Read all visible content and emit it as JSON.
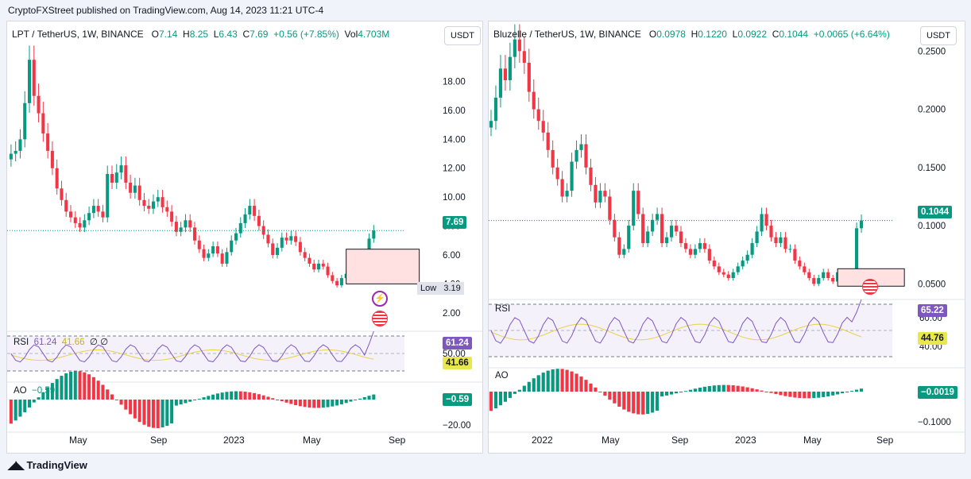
{
  "header": {
    "published_text": "CryptoFXStreet published on TradingView.com, Aug 14, 2023 11:21 UTC-4"
  },
  "footer": {
    "brand": "TradingView",
    "logo_icon": "tradingview-logo-icon"
  },
  "colors": {
    "up": "#089981",
    "down": "#f23645",
    "rsi": "#7e57c2",
    "rsi_ma": "#e8d24a",
    "box_fill": "#ffe1e1"
  },
  "left": {
    "currency_button": "USDT",
    "legend": {
      "symbol": "LPT / TetherUS, 1W, BINANCE",
      "o_label": "O",
      "o": "7.14",
      "h_label": "H",
      "h": "8.25",
      "l_label": "L",
      "l": "6.43",
      "c_label": "C",
      "c": "7.69",
      "change": "+0.56 (+7.85%)",
      "vol_label": "Vol",
      "vol": "4.703M"
    },
    "price_tag": "7.69",
    "low_label": "Low",
    "low_value": "3.19",
    "rsi_legend": {
      "name": "RSI",
      "rsi": "61.24",
      "ma": "41.66",
      "p1": "∅",
      "p2": "∅"
    },
    "rsi_tag": "61.24",
    "rsi_ma_tag": "41.66",
    "rsi_mid": "50.00",
    "ao_legend": {
      "name": "AO",
      "value": "−0.59"
    },
    "ao_tag": "−0.59",
    "ao_axis": "−20.00",
    "price_axis": [
      "18.00",
      "16.00",
      "14.00",
      "12.00",
      "10.00",
      "8.00",
      "6.00",
      "4.00",
      "2.00"
    ],
    "time_axis": [
      "May",
      "Sep",
      "2023",
      "May",
      "Sep"
    ],
    "icons": [
      "lightning-icon",
      "us-flag-icon"
    ]
  },
  "right": {
    "currency_button": "USDT",
    "legend": {
      "symbol": "Bluzelle / TetherUS, 1W, BINANCE",
      "o_label": "O",
      "o": "0.0978",
      "h_label": "H",
      "h": "0.1220",
      "l_label": "L",
      "l": "0.0922",
      "c_label": "C",
      "c": "0.1044",
      "change": "+0.0065 (+6.64%)"
    },
    "price_tag": "0.1044",
    "rsi_legend": {
      "name": "RSI"
    },
    "rsi_tag": "65.22",
    "rsi_ma_tag": "44.76",
    "rsi_top": "60.00",
    "rsi_bottom": "40.00",
    "ao_legend": {
      "name": "AO"
    },
    "ao_tag": "−0.0019",
    "ao_axis": "−0.1000",
    "price_axis": [
      "0.2500",
      "0.2000",
      "0.1500",
      "0.1000",
      "0.0500"
    ],
    "time_axis": [
      "2022",
      "May",
      "Sep",
      "2023",
      "May",
      "Sep"
    ],
    "icons": [
      "us-flag-icon"
    ]
  },
  "chart_data": [
    {
      "type": "candlestick",
      "title": "LPT / TetherUS, 1W, BINANCE",
      "ylim": [
        1,
        20.5
      ],
      "x_ticks": [
        "May",
        "Sep",
        "2023",
        "May",
        "Sep"
      ],
      "close": [
        13.0,
        13.2,
        14.0,
        16.5,
        19.5,
        17.0,
        15.8,
        14.4,
        13.2,
        12.0,
        10.6,
        9.8,
        9.0,
        8.6,
        8.2,
        7.9,
        8.4,
        8.9,
        9.4,
        9.0,
        8.6,
        11.6,
        11.0,
        11.7,
        12.2,
        11.0,
        10.3,
        10.8,
        9.8,
        9.4,
        9.2,
        9.7,
        10.0,
        9.3,
        9.0,
        8.3,
        7.6,
        7.9,
        8.4,
        7.9,
        7.0,
        6.4,
        5.8,
        6.1,
        6.6,
        6.1,
        5.4,
        6.2,
        7.0,
        7.5,
        8.2,
        8.8,
        9.4,
        8.7,
        8.0,
        7.4,
        6.8,
        6.0,
        6.5,
        7.2,
        7.0,
        7.3,
        6.9,
        6.2,
        5.8,
        5.4,
        5.0,
        5.4,
        5.2,
        4.6,
        4.2,
        3.9,
        4.4,
        4.7,
        4.6,
        4.4,
        4.2,
        4.3,
        7.13,
        7.69
      ],
      "low_marker": 3.19,
      "last": 7.69
    },
    {
      "type": "candlestick",
      "title": "Bluzelle / TetherUS, 1W, BINANCE",
      "ylim": [
        0.04,
        0.255
      ],
      "x_ticks": [
        "2022",
        "May",
        "Sep",
        "2023",
        "May",
        "Sep"
      ],
      "close": [
        0.19,
        0.21,
        0.235,
        0.225,
        0.245,
        0.26,
        0.25,
        0.24,
        0.215,
        0.2,
        0.19,
        0.18,
        0.165,
        0.15,
        0.14,
        0.125,
        0.13,
        0.155,
        0.165,
        0.17,
        0.15,
        0.135,
        0.12,
        0.13,
        0.125,
        0.105,
        0.09,
        0.075,
        0.08,
        0.1,
        0.13,
        0.11,
        0.085,
        0.095,
        0.105,
        0.11,
        0.085,
        0.09,
        0.1,
        0.095,
        0.085,
        0.08,
        0.075,
        0.08,
        0.085,
        0.08,
        0.07,
        0.065,
        0.06,
        0.058,
        0.055,
        0.06,
        0.065,
        0.07,
        0.075,
        0.085,
        0.095,
        0.11,
        0.1,
        0.09,
        0.085,
        0.09,
        0.08,
        0.08,
        0.07,
        0.065,
        0.06,
        0.055,
        0.05,
        0.055,
        0.06,
        0.055,
        0.052,
        0.06,
        0.058,
        0.055,
        0.056,
        0.0978,
        0.1044
      ],
      "last": 0.1044
    }
  ]
}
